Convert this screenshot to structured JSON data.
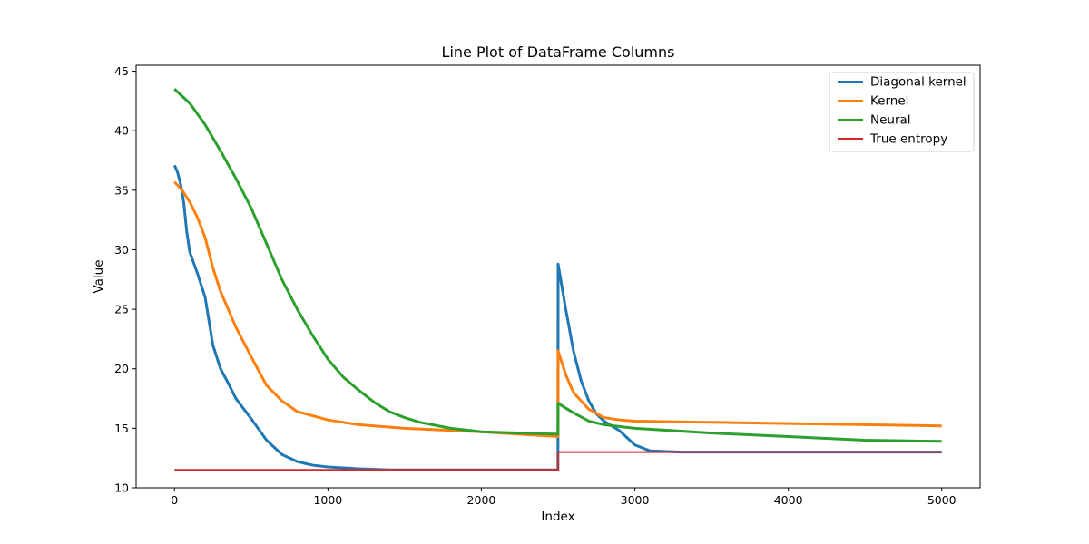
{
  "chart_data": {
    "type": "line",
    "title": "Line Plot of DataFrame Columns",
    "xlabel": "Index",
    "ylabel": "Value",
    "xlim": [
      -250,
      5250
    ],
    "ylim": [
      10,
      45.5
    ],
    "x_ticks": [
      0,
      1000,
      2000,
      3000,
      4000,
      5000
    ],
    "y_ticks": [
      10,
      15,
      20,
      25,
      30,
      35,
      40,
      45
    ],
    "grid": false,
    "legend_position": "top-right",
    "series": [
      {
        "name": "Diagonal kernel",
        "color": "#1f77b4",
        "points": [
          [
            0,
            37.1
          ],
          [
            20,
            36.5
          ],
          [
            40,
            35.5
          ],
          [
            60,
            34
          ],
          [
            80,
            31.5
          ],
          [
            100,
            29.8
          ],
          [
            150,
            28
          ],
          [
            200,
            26
          ],
          [
            250,
            22
          ],
          [
            300,
            20
          ],
          [
            350,
            18.8
          ],
          [
            400,
            17.5
          ],
          [
            500,
            15.8
          ],
          [
            600,
            14
          ],
          [
            700,
            12.8
          ],
          [
            800,
            12.2
          ],
          [
            900,
            11.9
          ],
          [
            1000,
            11.75
          ],
          [
            1200,
            11.6
          ],
          [
            1400,
            11.5
          ],
          [
            2000,
            11.5
          ],
          [
            2499,
            11.5
          ],
          [
            2500,
            28.8
          ],
          [
            2550,
            25
          ],
          [
            2600,
            21.5
          ],
          [
            2650,
            19
          ],
          [
            2700,
            17.3
          ],
          [
            2750,
            16.2
          ],
          [
            2800,
            15.6
          ],
          [
            2900,
            14.8
          ],
          [
            3000,
            13.6
          ],
          [
            3100,
            13.1
          ],
          [
            3300,
            13.0
          ],
          [
            4000,
            13.0
          ],
          [
            5000,
            13.0
          ]
        ]
      },
      {
        "name": "Kernel",
        "color": "#ff7f0e",
        "points": [
          [
            0,
            35.7
          ],
          [
            50,
            35
          ],
          [
            100,
            34
          ],
          [
            150,
            32.7
          ],
          [
            200,
            31
          ],
          [
            250,
            28.5
          ],
          [
            300,
            26.5
          ],
          [
            400,
            23.5
          ],
          [
            500,
            21
          ],
          [
            600,
            18.6
          ],
          [
            700,
            17.3
          ],
          [
            800,
            16.4
          ],
          [
            1000,
            15.7
          ],
          [
            1200,
            15.3
          ],
          [
            1500,
            15.0
          ],
          [
            2000,
            14.7
          ],
          [
            2499,
            14.3
          ],
          [
            2500,
            21.5
          ],
          [
            2550,
            19.5
          ],
          [
            2600,
            18
          ],
          [
            2700,
            16.6
          ],
          [
            2800,
            15.9
          ],
          [
            2900,
            15.7
          ],
          [
            3000,
            15.6
          ],
          [
            3500,
            15.5
          ],
          [
            4000,
            15.4
          ],
          [
            5000,
            15.2
          ]
        ]
      },
      {
        "name": "Neural",
        "color": "#2ca02c",
        "points": [
          [
            0,
            43.5
          ],
          [
            100,
            42.3
          ],
          [
            200,
            40.5
          ],
          [
            300,
            38.3
          ],
          [
            400,
            36
          ],
          [
            500,
            33.5
          ],
          [
            600,
            30.5
          ],
          [
            700,
            27.5
          ],
          [
            800,
            25
          ],
          [
            900,
            22.8
          ],
          [
            1000,
            20.8
          ],
          [
            1100,
            19.3
          ],
          [
            1200,
            18.2
          ],
          [
            1300,
            17.2
          ],
          [
            1400,
            16.4
          ],
          [
            1500,
            15.9
          ],
          [
            1600,
            15.5
          ],
          [
            1800,
            15.0
          ],
          [
            2000,
            14.7
          ],
          [
            2499,
            14.5
          ],
          [
            2500,
            17.1
          ],
          [
            2600,
            16.3
          ],
          [
            2700,
            15.6
          ],
          [
            2800,
            15.3
          ],
          [
            3000,
            15.0
          ],
          [
            3500,
            14.6
          ],
          [
            4000,
            14.3
          ],
          [
            4500,
            14.0
          ],
          [
            5000,
            13.9
          ]
        ]
      },
      {
        "name": "True entropy",
        "color": "#d62728",
        "points": [
          [
            0,
            11.5
          ],
          [
            2499,
            11.5
          ],
          [
            2500,
            13.0
          ],
          [
            5000,
            13.0
          ]
        ]
      }
    ]
  }
}
